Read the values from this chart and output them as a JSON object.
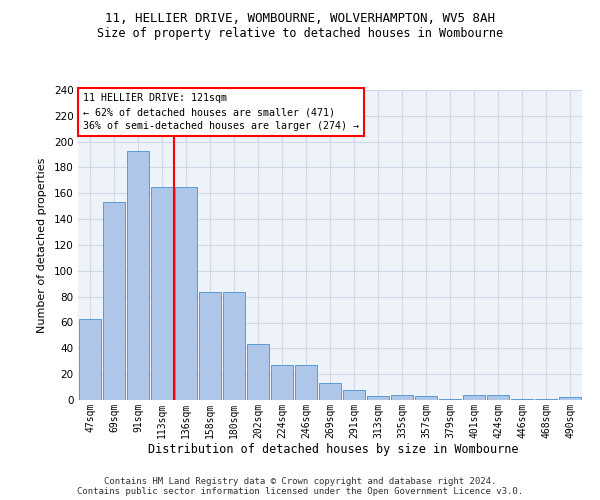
{
  "title": "11, HELLIER DRIVE, WOMBOURNE, WOLVERHAMPTON, WV5 8AH",
  "subtitle": "Size of property relative to detached houses in Wombourne",
  "xlabel": "Distribution of detached houses by size in Wombourne",
  "ylabel": "Number of detached properties",
  "footer_line1": "Contains HM Land Registry data © Crown copyright and database right 2024.",
  "footer_line2": "Contains public sector information licensed under the Open Government Licence v3.0.",
  "bar_values": [
    63,
    153,
    193,
    165,
    165,
    84,
    84,
    43,
    27,
    27,
    13,
    8,
    3,
    4,
    3,
    1,
    4,
    4,
    1,
    1,
    2
  ],
  "categories": [
    "47sqm",
    "69sqm",
    "91sqm",
    "113sqm",
    "136sqm",
    "158sqm",
    "180sqm",
    "202sqm",
    "224sqm",
    "246sqm",
    "269sqm",
    "291sqm",
    "313sqm",
    "335sqm",
    "357sqm",
    "379sqm",
    "401sqm",
    "424sqm",
    "446sqm",
    "468sqm",
    "490sqm"
  ],
  "bar_color": "#aec6e8",
  "bar_edge_color": "#5b9bd5",
  "grid_color": "#d0d8e8",
  "background_color": "#eef2f9",
  "vline_color": "red",
  "annotation_text": "11 HELLIER DRIVE: 121sqm\n← 62% of detached houses are smaller (471)\n36% of semi-detached houses are larger (274) →",
  "annotation_box_color": "white",
  "annotation_box_edge": "red",
  "ylim": [
    0,
    240
  ],
  "yticks": [
    0,
    20,
    40,
    60,
    80,
    100,
    120,
    140,
    160,
    180,
    200,
    220,
    240
  ]
}
